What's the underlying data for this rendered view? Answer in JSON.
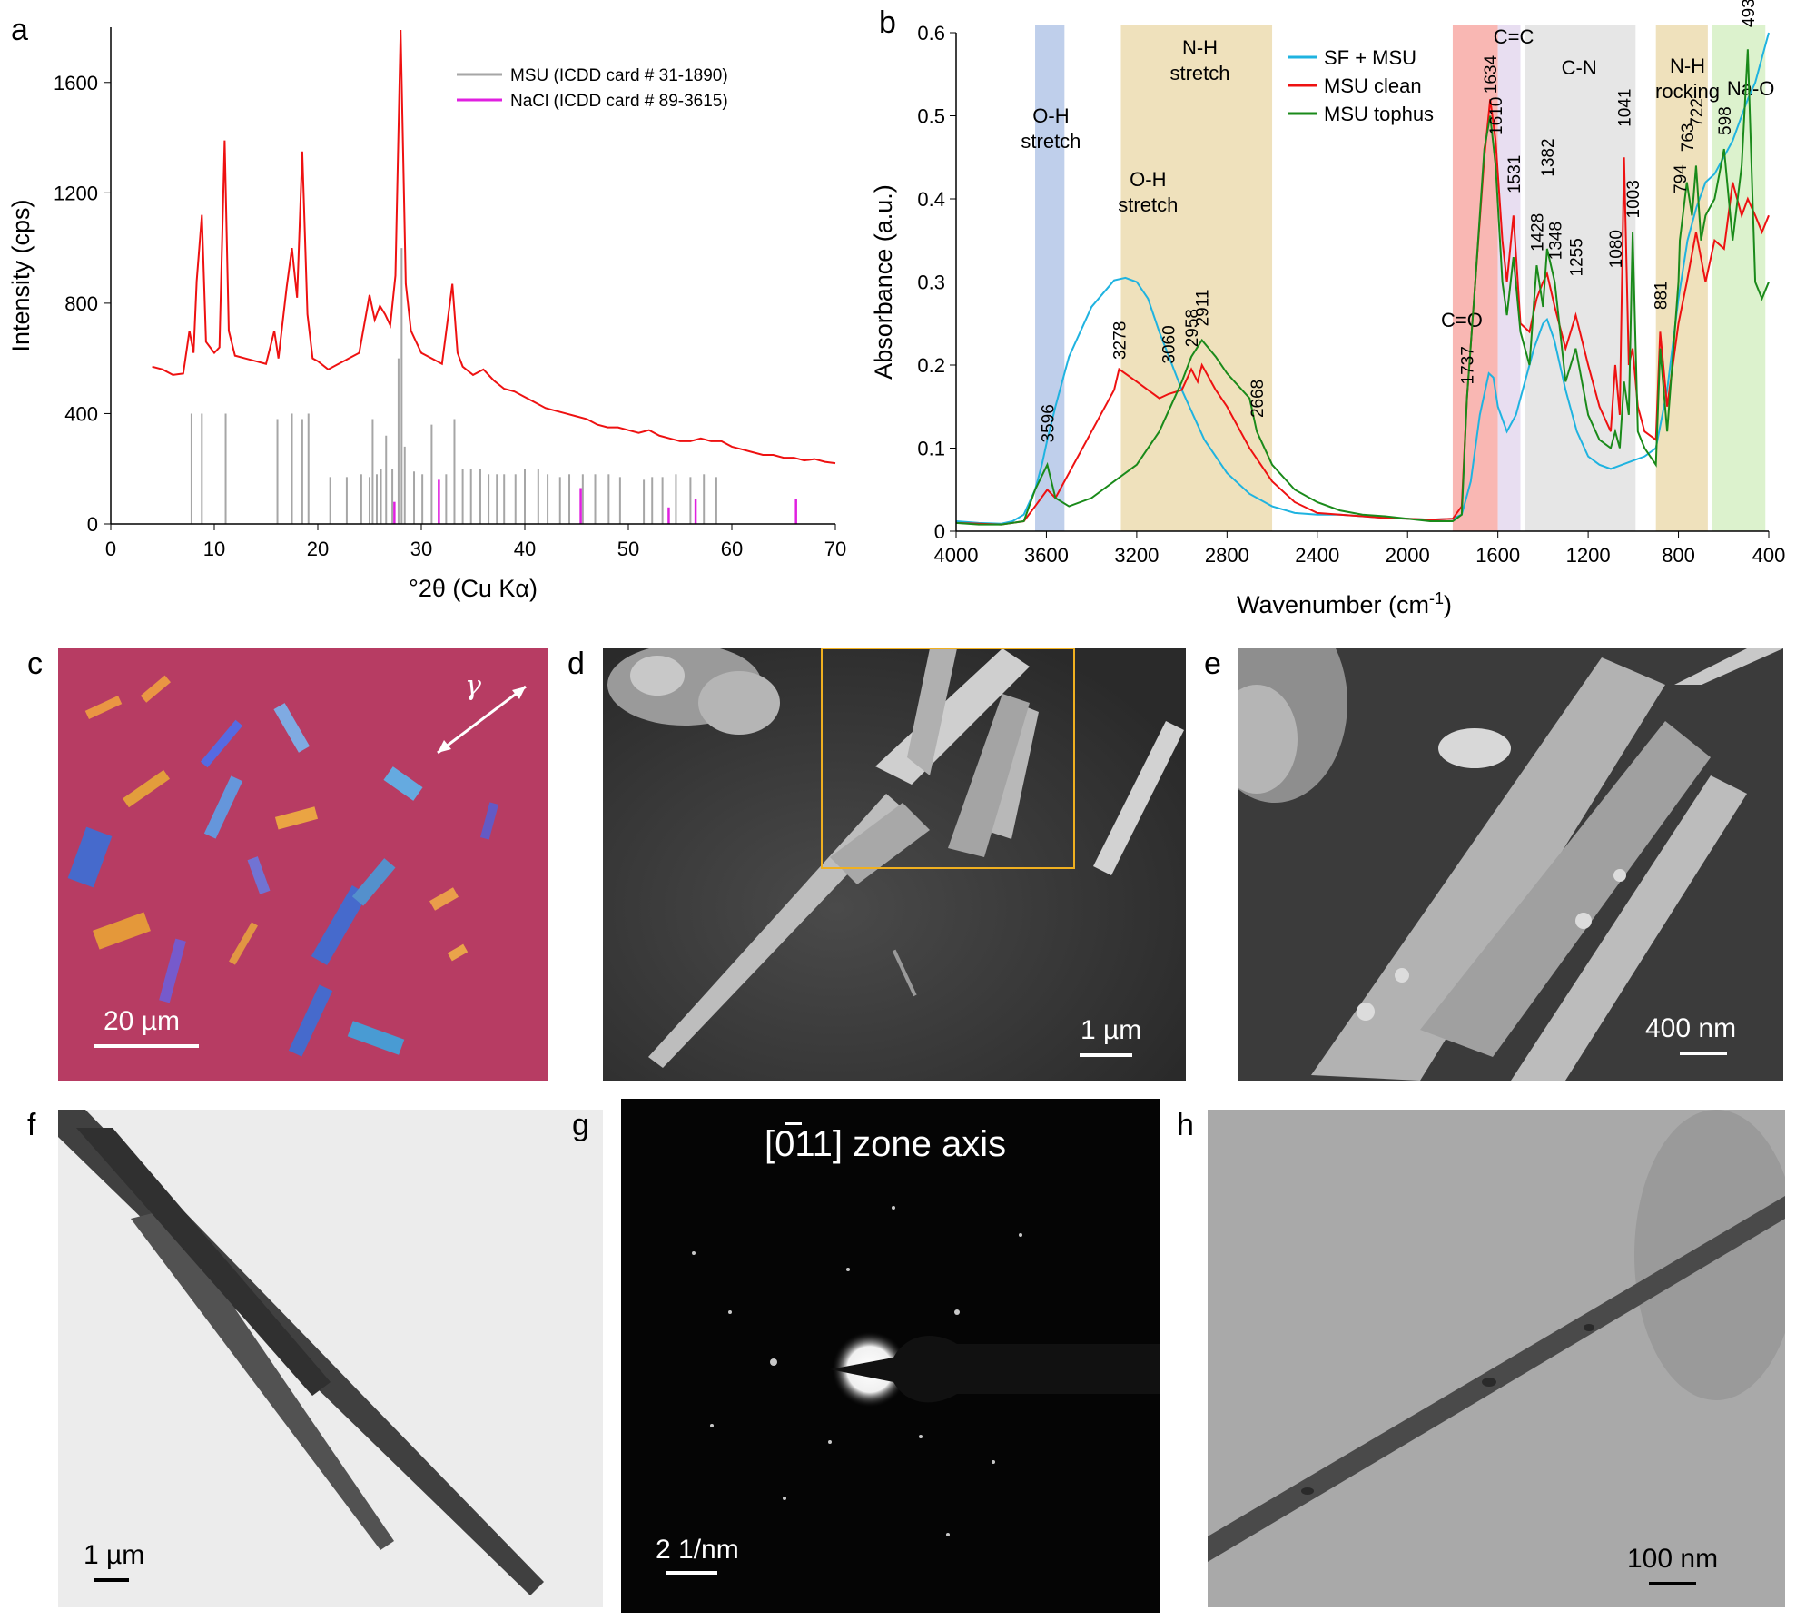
{
  "panel_labels": {
    "a": "a",
    "b": "b",
    "c": "c",
    "d": "d",
    "e": "e",
    "f": "f",
    "g": "g",
    "h": "h"
  },
  "chart_data": [
    {
      "panel": "a",
      "type": "line",
      "xlabel": "°2θ (Cu Kα)",
      "ylabel": "Intensity (cps)",
      "xlim": [
        0,
        70
      ],
      "ylim": [
        0,
        1800
      ],
      "xticks": [
        "0",
        "10",
        "20",
        "30",
        "40",
        "50",
        "60",
        "70"
      ],
      "yticks": [
        "0",
        "400",
        "800",
        "1200",
        "1600"
      ],
      "legend": [
        {
          "name": "MSU (ICDD card # 31-1890)",
          "color": "#a6a6a6"
        },
        {
          "name": "NaCl (ICDD card # 89-3615)",
          "color": "#e020e0"
        }
      ],
      "measured_pattern": {
        "color": "#ee1111",
        "x": [
          4,
          5,
          6,
          7,
          7.6,
          8,
          8.3,
          8.8,
          9.2,
          10,
          10.5,
          11,
          11.4,
          12,
          13,
          14,
          15,
          15.8,
          16.2,
          17,
          17.5,
          18,
          18.5,
          19,
          19.5,
          20,
          21,
          22,
          23,
          24,
          25,
          25.5,
          26,
          26.5,
          27,
          27.5,
          28,
          28.5,
          29,
          29.5,
          30,
          31,
          32,
          33,
          33.5,
          34,
          35,
          36,
          37,
          38,
          39,
          40,
          41,
          42,
          43,
          44,
          45,
          46,
          47,
          48,
          49,
          50,
          51,
          52,
          53,
          54,
          55,
          56,
          57,
          58,
          59,
          60,
          61,
          62,
          63,
          64,
          65,
          66,
          67,
          68,
          69,
          70
        ],
        "y": [
          570,
          560,
          540,
          545,
          700,
          620,
          880,
          1120,
          660,
          620,
          640,
          1390,
          700,
          610,
          600,
          590,
          580,
          700,
          600,
          860,
          1000,
          820,
          1350,
          760,
          600,
          590,
          560,
          580,
          600,
          620,
          830,
          740,
          790,
          760,
          720,
          900,
          1790,
          870,
          700,
          660,
          620,
          600,
          580,
          870,
          620,
          570,
          540,
          560,
          520,
          490,
          480,
          460,
          440,
          420,
          410,
          400,
          390,
          380,
          360,
          350,
          350,
          340,
          330,
          340,
          320,
          310,
          300,
          300,
          310,
          300,
          300,
          280,
          270,
          260,
          250,
          250,
          240,
          240,
          230,
          235,
          225,
          220
        ]
      },
      "reference_lines": {
        "MSU": {
          "color": "#a6a6a6",
          "positions": [
            7.8,
            8.8,
            11.1,
            16.1,
            17.5,
            18.5,
            19.1,
            21.2,
            22.8,
            24.2,
            25.0,
            25.3,
            25.7,
            26.1,
            26.6,
            27.2,
            27.8,
            28.1,
            28.4,
            29.3,
            30.1,
            31.0,
            32.4,
            33.2,
            34.0,
            34.8,
            35.7,
            36.5,
            37.3,
            38.0,
            39.1,
            40.0,
            41.3,
            42.2,
            43.4,
            44.3,
            45.6,
            46.8,
            48.1,
            49.2,
            51.5,
            52.3,
            53.3,
            54.6,
            56.0,
            57.3,
            58.5
          ],
          "heights": [
            400,
            400,
            400,
            380,
            400,
            380,
            400,
            170,
            170,
            180,
            170,
            380,
            180,
            200,
            320,
            200,
            600,
            1000,
            280,
            190,
            180,
            360,
            180,
            380,
            200,
            200,
            200,
            180,
            180,
            180,
            180,
            200,
            200,
            180,
            170,
            180,
            180,
            180,
            180,
            170,
            160,
            170,
            170,
            180,
            170,
            180,
            170
          ]
        },
        "NaCl": {
          "color": "#e020e0",
          "positions": [
            27.4,
            31.7,
            45.4,
            53.9,
            56.5,
            66.2
          ],
          "heights": [
            80,
            160,
            130,
            60,
            90,
            90
          ]
        }
      }
    },
    {
      "panel": "b",
      "type": "line",
      "xlabel": "Wavenumber (cm",
      "xlabel_sup": "-1",
      "xlabel_end": ")",
      "ylabel": "Absorbance (a.u.)",
      "xlim": [
        4000,
        400
      ],
      "ylim": [
        0,
        0.6
      ],
      "xticks": [
        "4000",
        "3600",
        "3200",
        "2800",
        "2400",
        "2000",
        "1600",
        "1200",
        "800",
        "400"
      ],
      "yticks": [
        "0",
        "0.1",
        "0.2",
        "0.3",
        "0.4",
        "0.5",
        "0.6"
      ],
      "legend": [
        {
          "name": "SF + MSU",
          "color": "#1fb3e0"
        },
        {
          "name": "MSU clean",
          "color": "#ee1111"
        },
        {
          "name": "MSU tophus",
          "color": "#1a8a1a"
        }
      ],
      "bands": [
        {
          "from": 3650,
          "to": 3520,
          "color": "#b4c7e7",
          "label": "O-H\nstretch"
        },
        {
          "from": 3270,
          "to": 2600,
          "color": "#ecdcb0",
          "label": "N-H\nstretch"
        },
        {
          "from": 1800,
          "to": 1600,
          "color": "#f8aaa6",
          "label": "C=O"
        },
        {
          "from": 1600,
          "to": 1500,
          "color": "#e4d8ee",
          "label": "C=C"
        },
        {
          "from": 1480,
          "to": 990,
          "color": "#e2e2e2",
          "label": "C-N"
        },
        {
          "from": 900,
          "to": 670,
          "color": "#ecdcb0",
          "label": "N-H\nrocking"
        },
        {
          "from": 650,
          "to": 415,
          "color": "#d6f0c4",
          "label": "Na-O"
        }
      ],
      "band_text_extra": "O-H\nstretch",
      "peak_labels": [
        "3596",
        "3278",
        "3060",
        "2958",
        "2911",
        "2668",
        "1737",
        "1634",
        "1610",
        "1531",
        "1428",
        "1382",
        "1348",
        "1255",
        "1080",
        "1041",
        "1003",
        "881",
        "794",
        "763",
        "722",
        "598",
        "493"
      ],
      "series": [
        {
          "name": "SF + MSU",
          "color": "#1fb3e0",
          "x": [
            4000,
            3900,
            3800,
            3750,
            3700,
            3650,
            3620,
            3596,
            3560,
            3500,
            3400,
            3300,
            3250,
            3200,
            3150,
            3100,
            3000,
            2900,
            2800,
            2700,
            2600,
            2500,
            2400,
            2300,
            2200,
            2100,
            2000,
            1900,
            1800,
            1760,
            1720,
            1680,
            1640,
            1620,
            1600,
            1560,
            1520,
            1480,
            1440,
            1400,
            1382,
            1350,
            1300,
            1250,
            1200,
            1150,
            1100,
            1050,
            1000,
            950,
            900,
            850,
            800,
            760,
            720,
            680,
            640,
            600,
            560,
            520,
            493,
            460,
            430,
            400
          ],
          "y": [
            0.012,
            0.01,
            0.009,
            0.012,
            0.02,
            0.05,
            0.08,
            0.11,
            0.15,
            0.21,
            0.27,
            0.302,
            0.305,
            0.3,
            0.28,
            0.24,
            0.17,
            0.11,
            0.07,
            0.045,
            0.03,
            0.022,
            0.02,
            0.02,
            0.018,
            0.016,
            0.015,
            0.014,
            0.015,
            0.02,
            0.06,
            0.14,
            0.19,
            0.185,
            0.15,
            0.12,
            0.14,
            0.18,
            0.22,
            0.25,
            0.255,
            0.23,
            0.17,
            0.12,
            0.09,
            0.08,
            0.075,
            0.08,
            0.085,
            0.09,
            0.1,
            0.17,
            0.28,
            0.35,
            0.39,
            0.42,
            0.43,
            0.45,
            0.47,
            0.5,
            0.52,
            0.54,
            0.57,
            0.6
          ]
        },
        {
          "name": "MSU clean",
          "color": "#ee1111",
          "x": [
            4000,
            3900,
            3800,
            3700,
            3650,
            3596,
            3560,
            3500,
            3400,
            3300,
            3278,
            3200,
            3100,
            3060,
            3000,
            2958,
            2930,
            2911,
            2850,
            2800,
            2700,
            2600,
            2500,
            2400,
            2300,
            2200,
            2100,
            2000,
            1900,
            1800,
            1760,
            1737,
            1700,
            1660,
            1634,
            1610,
            1580,
            1560,
            1531,
            1500,
            1460,
            1428,
            1400,
            1382,
            1348,
            1300,
            1255,
            1200,
            1150,
            1100,
            1080,
            1060,
            1041,
            1020,
            1003,
            980,
            950,
            900,
            881,
            850,
            800,
            763,
            722,
            680,
            640,
            598,
            560,
            520,
            493,
            460,
            430,
            400
          ],
          "y": [
            0.01,
            0.009,
            0.008,
            0.012,
            0.03,
            0.05,
            0.04,
            0.07,
            0.12,
            0.17,
            0.195,
            0.18,
            0.16,
            0.165,
            0.17,
            0.195,
            0.18,
            0.2,
            0.17,
            0.15,
            0.1,
            0.06,
            0.035,
            0.022,
            0.02,
            0.018,
            0.016,
            0.015,
            0.014,
            0.015,
            0.03,
            0.16,
            0.3,
            0.45,
            0.52,
            0.47,
            0.35,
            0.3,
            0.38,
            0.25,
            0.24,
            0.28,
            0.3,
            0.31,
            0.27,
            0.22,
            0.26,
            0.2,
            0.15,
            0.12,
            0.2,
            0.14,
            0.45,
            0.2,
            0.22,
            0.15,
            0.12,
            0.11,
            0.24,
            0.15,
            0.25,
            0.3,
            0.36,
            0.3,
            0.35,
            0.34,
            0.42,
            0.38,
            0.4,
            0.38,
            0.36,
            0.38
          ]
        },
        {
          "name": "MSU tophus",
          "color": "#1a8a1a",
          "x": [
            4000,
            3900,
            3800,
            3700,
            3650,
            3596,
            3560,
            3500,
            3400,
            3300,
            3200,
            3100,
            3000,
            2958,
            2911,
            2850,
            2800,
            2700,
            2668,
            2600,
            2500,
            2400,
            2300,
            2200,
            2100,
            2000,
            1900,
            1800,
            1760,
            1737,
            1700,
            1660,
            1634,
            1610,
            1580,
            1560,
            1531,
            1500,
            1460,
            1428,
            1400,
            1382,
            1348,
            1300,
            1255,
            1200,
            1150,
            1100,
            1080,
            1060,
            1041,
            1020,
            1003,
            980,
            950,
            900,
            881,
            850,
            800,
            794,
            763,
            740,
            722,
            700,
            680,
            640,
            598,
            560,
            520,
            493,
            460,
            430,
            400
          ],
          "y": [
            0.01,
            0.008,
            0.008,
            0.012,
            0.05,
            0.08,
            0.04,
            0.03,
            0.04,
            0.06,
            0.08,
            0.12,
            0.18,
            0.21,
            0.23,
            0.21,
            0.19,
            0.16,
            0.12,
            0.08,
            0.05,
            0.035,
            0.025,
            0.02,
            0.018,
            0.015,
            0.012,
            0.012,
            0.02,
            0.16,
            0.3,
            0.46,
            0.5,
            0.44,
            0.3,
            0.26,
            0.33,
            0.24,
            0.2,
            0.32,
            0.27,
            0.34,
            0.3,
            0.18,
            0.22,
            0.14,
            0.11,
            0.1,
            0.12,
            0.1,
            0.18,
            0.14,
            0.36,
            0.12,
            0.1,
            0.08,
            0.22,
            0.12,
            0.3,
            0.35,
            0.42,
            0.38,
            0.44,
            0.35,
            0.38,
            0.4,
            0.46,
            0.35,
            0.44,
            0.58,
            0.3,
            0.28,
            0.3
          ]
        }
      ]
    }
  ],
  "panel_c": {
    "scale_label": "20 µm",
    "gamma_label": "γ",
    "background": "#b73c63"
  },
  "panel_d": {
    "scale_label": "1 µm",
    "zoom_box_color": "#f0b020"
  },
  "panel_e": {
    "scale_label": "400 nm"
  },
  "panel_f": {
    "scale_label": "1 µm"
  },
  "panel_g": {
    "zone_axis_text": "[011] zone axis",
    "scale_label": "2 1/nm"
  },
  "panel_h": {
    "scale_label": "100 nm"
  }
}
